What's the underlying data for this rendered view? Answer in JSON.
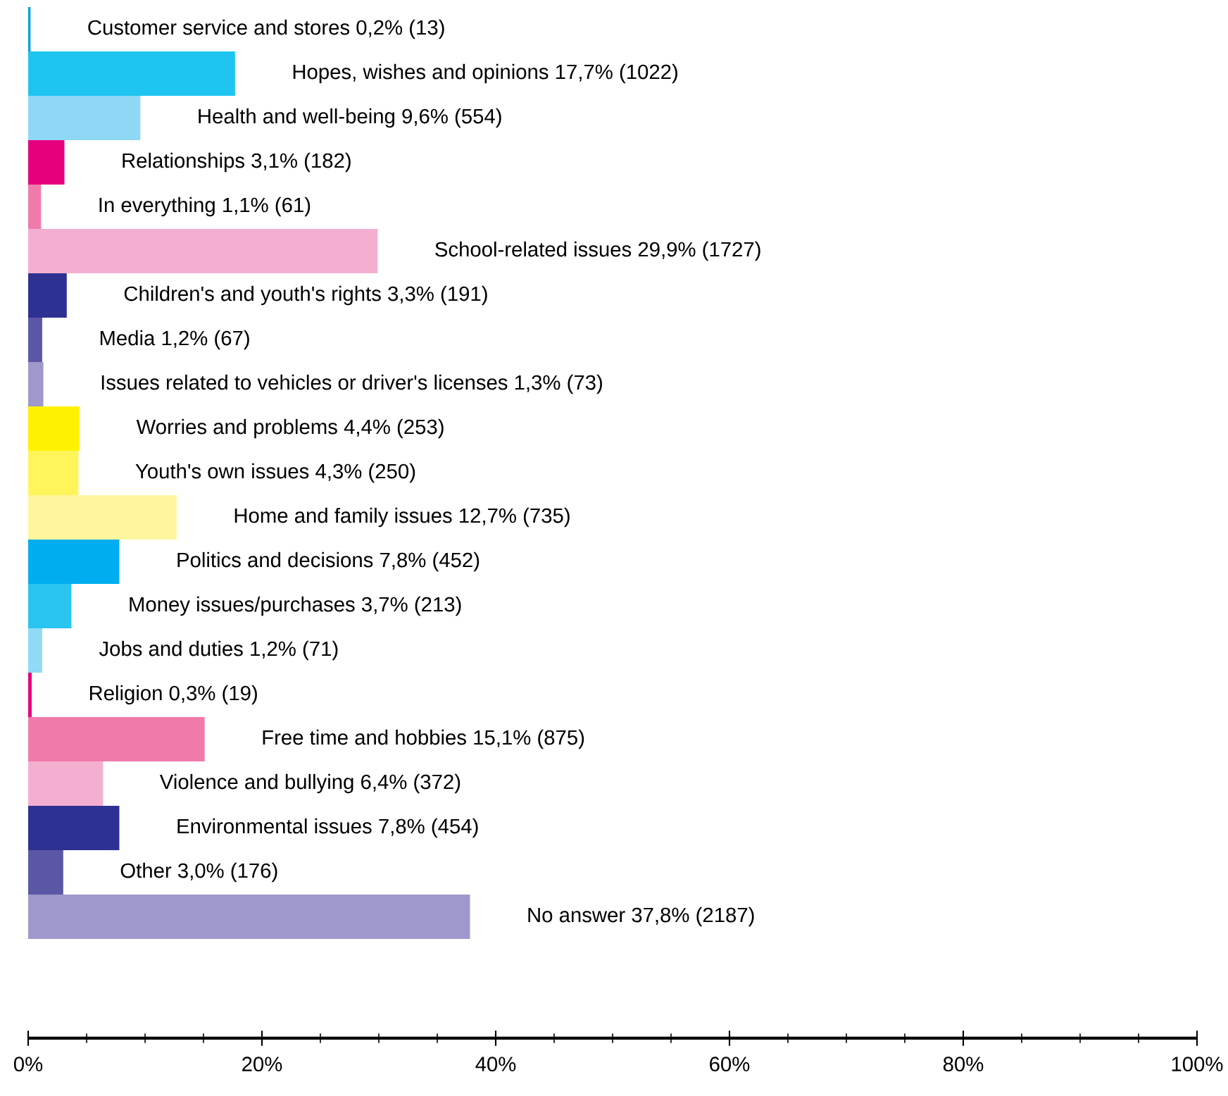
{
  "chart_data": {
    "type": "bar",
    "orientation": "horizontal",
    "categories": [
      "Customer service and stores 0,2% (13)",
      "Hopes, wishes and opinions 17,7% (1022)",
      "Health and well-being 9,6% (554)",
      "Relationships 3,1% (182)",
      "In everything 1,1% (61)",
      "School-related issues 29,9% (1727)",
      "Children's and youth's rights 3,3% (191)",
      "Media 1,2% (67)",
      "Issues related to vehicles or driver's licenses 1,3% (73)",
      "Worries and problems 4,4% (253)",
      "Youth's own issues 4,3% (250)",
      "Home and family issues 12,7% (735)",
      "Politics and decisions 7,8% (452)",
      "Money issues/purchases 3,7% (213)",
      "Jobs and duties 1,2% (71)",
      "Religion 0,3% (19)",
      "Free time and hobbies 15,1% (875)",
      "Violence and bullying 6,4% (372)",
      "Environmental issues 7,8% (454)",
      "Other 3,0% (176)",
      "No answer 37,8% (2187)"
    ],
    "values": [
      0.2,
      17.7,
      9.6,
      3.1,
      1.1,
      29.9,
      3.3,
      1.2,
      1.3,
      4.4,
      4.3,
      12.7,
      7.8,
      3.7,
      1.2,
      0.3,
      15.1,
      6.4,
      7.8,
      3.0,
      37.8
    ],
    "colors": [
      "#00a0e0",
      "#1ec5f0",
      "#8fd8f5",
      "#e6007e",
      "#f07aaa",
      "#f4afd0",
      "#2e3192",
      "#5b57a6",
      "#9e98cc",
      "#fff200",
      "#fff55a",
      "#fff59d",
      "#00aeef",
      "#29c4f0",
      "#90daf5",
      "#e6007e",
      "#f07aaa",
      "#f4afd0",
      "#2e3192",
      "#5b57a6",
      "#9e98cc"
    ],
    "xlim": [
      0,
      100
    ],
    "xticks": [
      {
        "value": 0,
        "label": "0%"
      },
      {
        "value": 20,
        "label": "20%"
      },
      {
        "value": 40,
        "label": "40%"
      },
      {
        "value": 60,
        "label": "60%"
      },
      {
        "value": 80,
        "label": "80%"
      },
      {
        "value": 100,
        "label": "100%"
      }
    ]
  }
}
